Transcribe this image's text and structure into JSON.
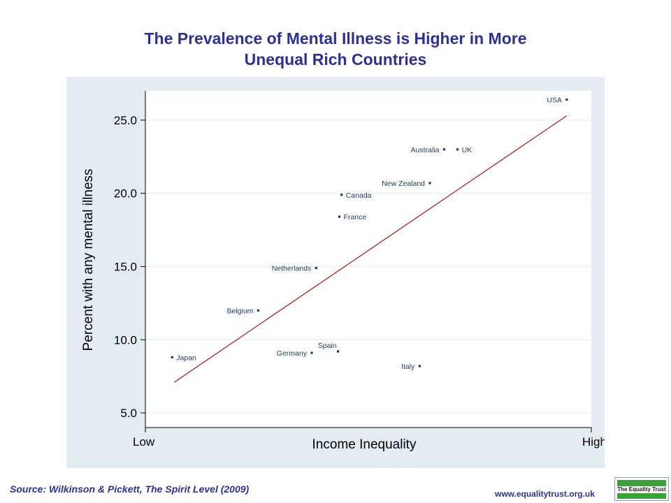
{
  "title": {
    "line1": "The Prevalence of Mental Illness is Higher in More",
    "line2": "Unequal Rich Countries"
  },
  "source": "Source: Wilkinson & Pickett, The Spirit Level (2009)",
  "website": "www.equalitytrust.org.uk",
  "logo_text": "The Equality Trust",
  "colors": {
    "title": "#2e3192",
    "panel_background": "#e3ecf1",
    "trend_line": "#a52a2a",
    "points": "#1c3c5e",
    "logo_green": "#3aa335"
  },
  "chart_data": {
    "type": "scatter",
    "xlabel": "Income Inequality",
    "ylabel": "Percent with any mental illness",
    "x_tick_labels": [
      "Low",
      "High"
    ],
    "xlim": [
      0,
      100
    ],
    "ylim": [
      4.0,
      27.0
    ],
    "y_ticks": [
      5.0,
      10.0,
      15.0,
      20.0,
      25.0
    ],
    "y_tick_labels": [
      "5.0",
      "10.0",
      "15.0",
      "20.0",
      "25.0"
    ],
    "grid": "horizontal",
    "points": [
      {
        "label": "USA",
        "x": 94.5,
        "y": 26.4,
        "label_side": "left"
      },
      {
        "label": "Australia",
        "x": 67.0,
        "y": 23.0,
        "label_side": "left"
      },
      {
        "label": "UK",
        "x": 70.0,
        "y": 23.0,
        "label_side": "right"
      },
      {
        "label": "New Zealand",
        "x": 63.8,
        "y": 20.7,
        "label_side": "left"
      },
      {
        "label": "Canada",
        "x": 44.0,
        "y": 19.9,
        "label_side": "right"
      },
      {
        "label": "France",
        "x": 43.5,
        "y": 18.4,
        "label_side": "right"
      },
      {
        "label": "Netherlands",
        "x": 38.3,
        "y": 14.9,
        "label_side": "left"
      },
      {
        "label": "Belgium",
        "x": 25.3,
        "y": 12.0,
        "label_side": "left"
      },
      {
        "label": "Spain",
        "x": 43.2,
        "y": 9.2,
        "label_side": "above-left"
      },
      {
        "label": "Germany",
        "x": 37.3,
        "y": 9.1,
        "label_side": "left"
      },
      {
        "label": "Italy",
        "x": 61.5,
        "y": 8.2,
        "label_side": "left"
      },
      {
        "label": "Japan",
        "x": 6.0,
        "y": 8.8,
        "label_side": "right"
      }
    ],
    "trend_line": {
      "x1": 6.5,
      "y1": 7.1,
      "x2": 94.5,
      "y2": 25.3
    }
  }
}
